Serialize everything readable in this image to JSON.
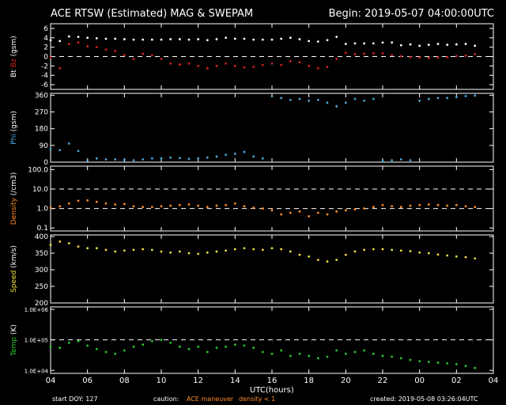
{
  "header": {
    "title": "ACE RTSW (Estimated) MAG & SWEPAM",
    "begin": "Begin: 2019-05-07 04:00:00UTC"
  },
  "footer": {
    "start_doy": "start DOY: 127",
    "caution": "caution:",
    "maneuver": "ACE maneuver",
    "density_note": "density < 1",
    "created": "created: 2019-05-08 03:26:04UTC"
  },
  "colors": {
    "bt": "#ffffff",
    "bz": "#d42020",
    "phi": "#4aa8e0",
    "density": "#ff8c28",
    "speed": "#f0e040",
    "temp": "#2cc82c",
    "axis": "#ffffff",
    "dashed": "#ffffff"
  },
  "chart_data": {
    "type": "scatter",
    "xlabel": "UTC(hours)",
    "xticks": [
      "04",
      "06",
      "08",
      "10",
      "12",
      "14",
      "16",
      "18",
      "20",
      "22",
      "00",
      "02",
      "04"
    ],
    "xlim": [
      0,
      24
    ],
    "panels": [
      {
        "id": "mag",
        "ylabel_parts": [
          {
            "text": "Bt",
            "color": "#ffffff"
          },
          {
            "text": "Bz",
            "color": "#d42020"
          },
          {
            "text": "(gsm)",
            "color": "#ffffff"
          }
        ],
        "ylim": [
          -7,
          7
        ],
        "scale": "linear",
        "ticks": [
          {
            "v": 6,
            "t": "6"
          },
          {
            "v": 4,
            "t": "4"
          },
          {
            "v": 2,
            "t": "2"
          },
          {
            "v": 0,
            "t": "0"
          },
          {
            "v": -2,
            "t": "-2"
          },
          {
            "v": -4,
            "t": "-4"
          },
          {
            "v": -6,
            "t": "-6"
          }
        ],
        "dashed": [
          0
        ],
        "series": [
          {
            "name": "Bt",
            "color": "#ffffff",
            "x": [
              0,
              0.5,
              1,
              1.5,
              2,
              2.5,
              3,
              3.5,
              4,
              4.5,
              5,
              5.5,
              6,
              6.5,
              7,
              7.5,
              8,
              8.5,
              9,
              9.5,
              10,
              10.5,
              11,
              11.5,
              12,
              12.5,
              13,
              13.5,
              14,
              14.5,
              15,
              15.5,
              16,
              16.5,
              17,
              17.5,
              18,
              18.5,
              19,
              19.5,
              20,
              20.5,
              21,
              21.5,
              22,
              22.5,
              23
            ],
            "y": [
              3.5,
              3.3,
              4.3,
              4.2,
              4,
              3.9,
              3.8,
              3.8,
              3.7,
              3.6,
              3.6,
              3.6,
              3.6,
              3.7,
              3.7,
              3.6,
              3.7,
              3.5,
              3.7,
              4,
              3.8,
              3.8,
              3.6,
              3.6,
              3.6,
              3.8,
              4,
              3.7,
              3.3,
              3.2,
              3.5,
              4.2,
              2.7,
              2.8,
              2.8,
              2.8,
              3,
              3,
              2.4,
              2.6,
              2.3,
              2.5,
              2.7,
              2.5,
              2.6,
              2.7,
              2.3
            ]
          },
          {
            "name": "Bz",
            "color": "#d42020",
            "x": [
              0,
              0.5,
              1,
              1.5,
              2,
              2.5,
              3,
              3.5,
              4,
              4.5,
              5,
              5.5,
              6,
              6.5,
              7,
              7.5,
              8,
              8.5,
              9,
              9.5,
              10,
              10.5,
              11,
              11.5,
              12,
              12.5,
              13,
              13.5,
              14,
              14.5,
              15,
              15.5,
              16,
              16.5,
              17,
              17.5,
              18,
              18.5,
              19,
              19.5,
              20,
              20.5,
              21,
              21.5,
              22,
              22.5,
              23
            ],
            "y": [
              -0.2,
              -2.5,
              2.7,
              3,
              2.2,
              2,
              1.5,
              1.2,
              0.3,
              -0.5,
              0.6,
              0.3,
              -0.5,
              -1.5,
              -1.7,
              -1.5,
              -2,
              -2.5,
              -2,
              -1.5,
              -2,
              -2.3,
              -2.2,
              -1.8,
              -1.5,
              -1.8,
              -1,
              -1.2,
              -2,
              -2.5,
              -2.2,
              -0.5,
              0.8,
              0.5,
              0.6,
              0.7,
              0.7,
              0.3,
              0.1,
              -0.1,
              -0.2,
              -0.3,
              -0.2,
              -0.1,
              0.1,
              0.2,
              0.5
            ]
          }
        ]
      },
      {
        "id": "phi",
        "ylabel_parts": [
          {
            "text": "Phi",
            "color": "#4aa8e0"
          },
          {
            "text": "(gsm)",
            "color": "#ffffff"
          }
        ],
        "ylim": [
          0,
          370
        ],
        "scale": "linear",
        "ticks": [
          {
            "v": 360,
            "t": "360"
          },
          {
            "v": 270,
            "t": "270"
          },
          {
            "v": 180,
            "t": "180"
          },
          {
            "v": 90,
            "t": "90"
          },
          {
            "v": 0,
            "t": "0"
          }
        ],
        "dashed": [],
        "series": [
          {
            "name": "Phi",
            "color": "#4aa8e0",
            "x": [
              0,
              0.5,
              1,
              1.5,
              2,
              2.5,
              3,
              3.5,
              4,
              4.5,
              5,
              5.5,
              6,
              6.5,
              7,
              7.5,
              8,
              8.5,
              9,
              9.5,
              10,
              10.5,
              11,
              11.5,
              12,
              12.5,
              13,
              13.5,
              14,
              14.5,
              15,
              15.5,
              16,
              16.5,
              17,
              17.5,
              18,
              18.5,
              19,
              19.5,
              20,
              20.5,
              21,
              21.5,
              22,
              22.5,
              23
            ],
            "y": [
              70,
              65,
              100,
              60,
              10,
              20,
              15,
              15,
              12,
              10,
              15,
              20,
              20,
              25,
              22,
              18,
              20,
              25,
              30,
              40,
              45,
              55,
              30,
              20,
              355,
              345,
              335,
              340,
              330,
              335,
              320,
              300,
              320,
              340,
              330,
              340,
              5,
              10,
              15,
              10,
              330,
              340,
              345,
              345,
              350,
              355,
              358
            ]
          }
        ]
      },
      {
        "id": "density",
        "ylabel_parts": [
          {
            "text": "Density",
            "color": "#ff8c28"
          },
          {
            "text": "(/cm3)",
            "color": "#ffffff"
          }
        ],
        "ylim": [
          0.07,
          150
        ],
        "scale": "log",
        "ticks": [
          {
            "v": 100,
            "t": "100.0"
          },
          {
            "v": 10,
            "t": "10.0"
          },
          {
            "v": 1,
            "t": "1.0"
          },
          {
            "v": 0.1,
            "t": "0.1"
          }
        ],
        "dashed": [
          10,
          1
        ],
        "series": [
          {
            "name": "Density",
            "color": "#ff8c28",
            "x": [
              0,
              0.5,
              1,
              1.5,
              2,
              2.5,
              3,
              3.5,
              4,
              4.5,
              5,
              5.5,
              6,
              6.5,
              7,
              7.5,
              8,
              8.5,
              9,
              9.5,
              10,
              10.5,
              11,
              11.5,
              12,
              12.5,
              13,
              13.5,
              14,
              14.5,
              15,
              15.5,
              16,
              16.5,
              17,
              17.5,
              18,
              18.5,
              19,
              19.5,
              20,
              20.5,
              21,
              21.5,
              22,
              22.5,
              23
            ],
            "y": [
              1.1,
              1.3,
              1.8,
              2.5,
              2.6,
              2.2,
              1.8,
              1.6,
              1.7,
              1.3,
              1.2,
              1.2,
              1.3,
              1.4,
              1.5,
              1.6,
              1.4,
              1.2,
              1.4,
              1.5,
              1.8,
              1.3,
              1.1,
              1.0,
              0.8,
              0.5,
              0.6,
              0.7,
              0.4,
              0.6,
              0.5,
              0.7,
              0.8,
              0.9,
              1.0,
              1.2,
              1.5,
              1.3,
              1.2,
              1.4,
              1.5,
              1.6,
              1.5,
              1.4,
              1.5,
              1.3,
              1.2
            ]
          }
        ]
      },
      {
        "id": "speed",
        "ylabel_parts": [
          {
            "text": "Speed",
            "color": "#f0e040"
          },
          {
            "text": "(km/s)",
            "color": "#ffffff"
          }
        ],
        "ylim": [
          200,
          405
        ],
        "scale": "linear",
        "ticks": [
          {
            "v": 400,
            "t": "400"
          },
          {
            "v": 350,
            "t": "350"
          },
          {
            "v": 300,
            "t": "300"
          },
          {
            "v": 250,
            "t": "250"
          },
          {
            "v": 200,
            "t": "200"
          }
        ],
        "dashed": [],
        "series": [
          {
            "name": "Speed",
            "color": "#f0e040",
            "x": [
              0,
              0.5,
              1,
              1.5,
              2,
              2.5,
              3,
              3.5,
              4,
              4.5,
              5,
              5.5,
              6,
              6.5,
              7,
              7.5,
              8,
              8.5,
              9,
              9.5,
              10,
              10.5,
              11,
              11.5,
              12,
              12.5,
              13,
              13.5,
              14,
              14.5,
              15,
              15.5,
              16,
              16.5,
              17,
              17.5,
              18,
              18.5,
              19,
              19.5,
              20,
              20.5,
              21,
              21.5,
              22,
              22.5,
              23
            ],
            "y": [
              375,
              385,
              380,
              370,
              365,
              365,
              360,
              355,
              358,
              360,
              362,
              360,
              355,
              352,
              355,
              350,
              348,
              352,
              355,
              358,
              362,
              365,
              362,
              360,
              365,
              362,
              355,
              345,
              340,
              330,
              325,
              330,
              345,
              355,
              360,
              362,
              362,
              360,
              358,
              356,
              352,
              350,
              346,
              343,
              340,
              338,
              334
            ]
          }
        ]
      },
      {
        "id": "temp",
        "ylabel_parts": [
          {
            "text": "Temp",
            "color": "#2cc82c"
          },
          {
            "text": "(K)",
            "color": "#ffffff"
          }
        ],
        "ylim": [
          8000,
          1200000
        ],
        "scale": "log",
        "ticks": [
          {
            "v": 1000000,
            "t": "1.0E+06"
          },
          {
            "v": 100000,
            "t": "1.0E+05"
          },
          {
            "v": 10000,
            "t": "1.0E+04"
          }
        ],
        "dashed": [
          100000
        ],
        "series": [
          {
            "name": "Temp",
            "color": "#2cc82c",
            "x": [
              0,
              0.5,
              1,
              1.5,
              2,
              2.5,
              3,
              3.5,
              4,
              4.5,
              5,
              5.5,
              6,
              6.5,
              7,
              7.5,
              8,
              8.5,
              9,
              9.5,
              10,
              10.5,
              11,
              11.5,
              12,
              12.5,
              13,
              13.5,
              14,
              14.5,
              15,
              15.5,
              16,
              16.5,
              17,
              17.5,
              18,
              18.5,
              19,
              19.5,
              20,
              20.5,
              21,
              21.5,
              22,
              22.5,
              23
            ],
            "y": [
              60000,
              55000,
              80000,
              90000,
              65000,
              50000,
              40000,
              35000,
              45000,
              60000,
              70000,
              90000,
              100000,
              80000,
              60000,
              50000,
              60000,
              40000,
              55000,
              60000,
              70000,
              65000,
              55000,
              40000,
              35000,
              45000,
              30000,
              35000,
              30000,
              25000,
              28000,
              45000,
              35000,
              40000,
              45000,
              35000,
              30000,
              28000,
              25000,
              22000,
              20000,
              19000,
              18000,
              17000,
              16000,
              14000,
              12000
            ]
          }
        ]
      }
    ]
  }
}
